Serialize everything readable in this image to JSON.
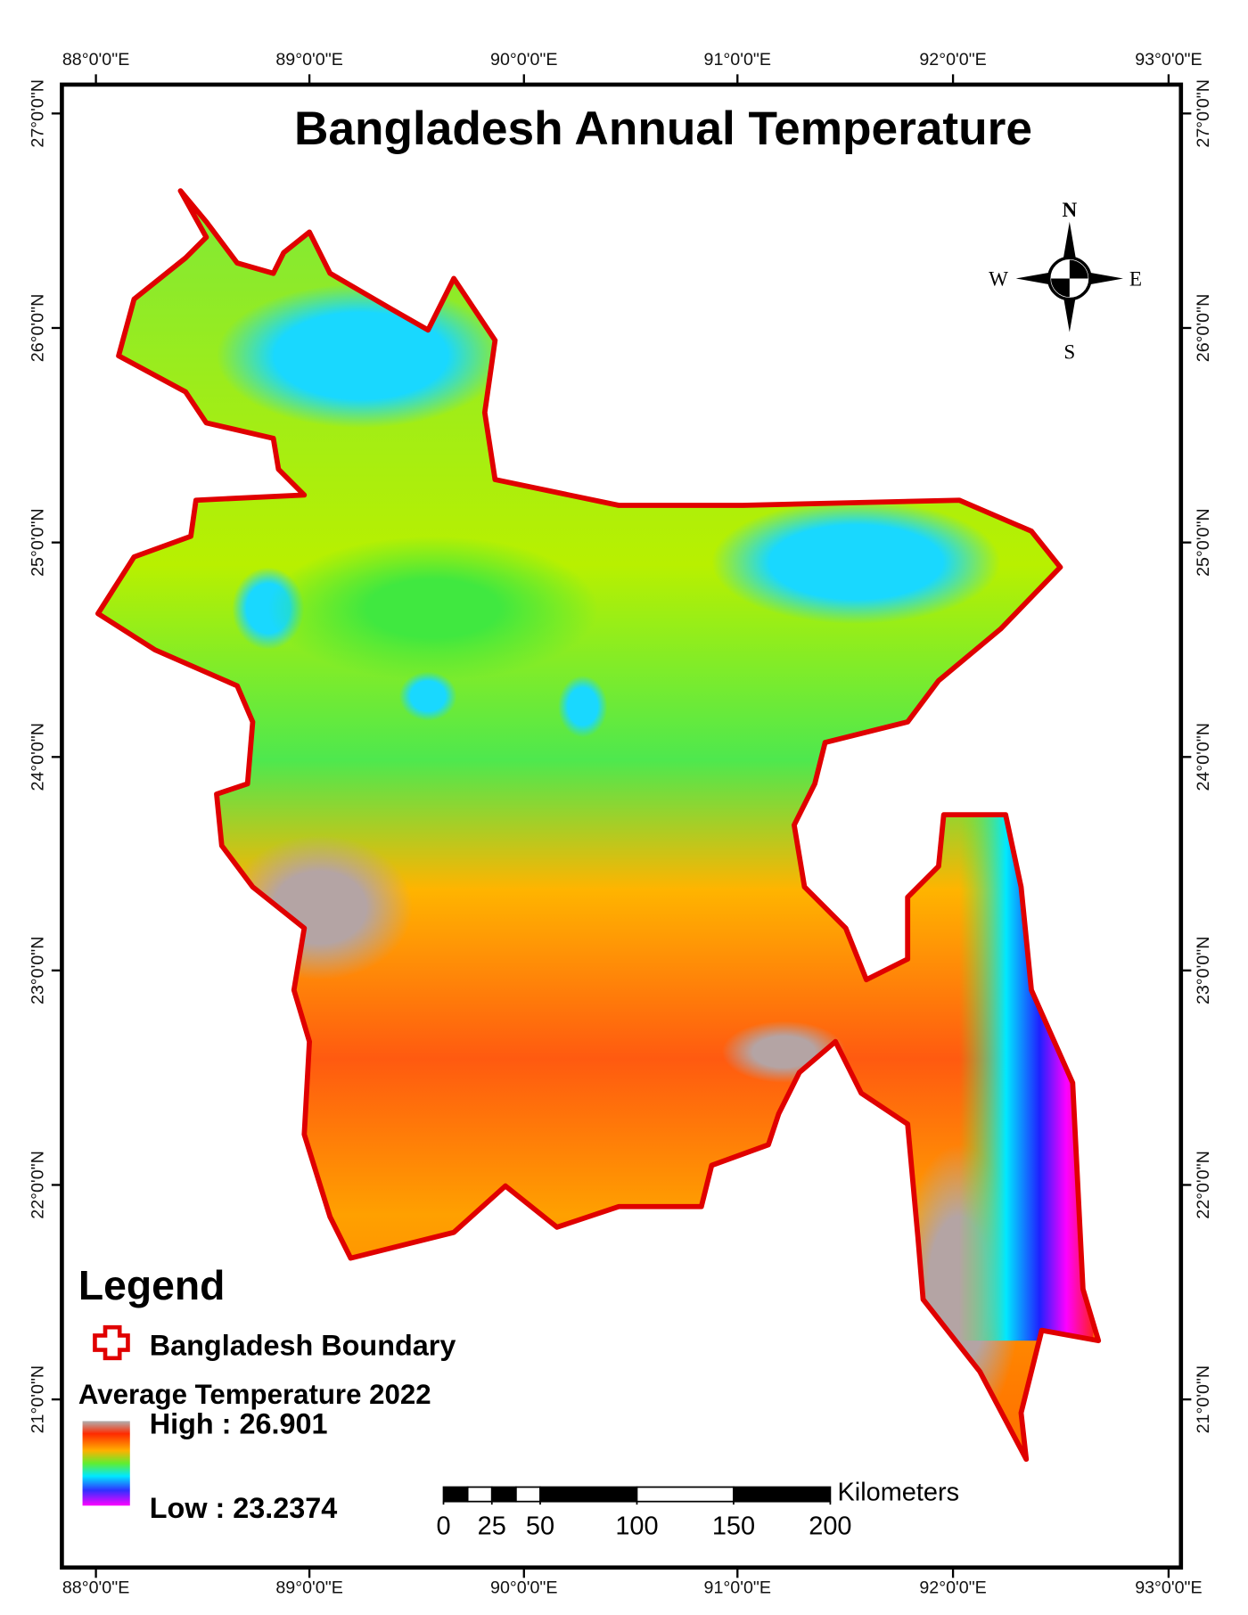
{
  "title": "Bangladesh Annual Temperature",
  "longitude_labels": [
    "88°0'0\"E",
    "89°0'0\"E",
    "90°0'0\"E",
    "91°0'0\"E",
    "92°0'0\"E",
    "93°0'0\"E"
  ],
  "latitude_labels": [
    "27°0'0\"N",
    "26°0'0\"N",
    "25°0'0\"N",
    "24°0'0\"N",
    "23°0'0\"N",
    "22°0'0\"N",
    "21°0'0\"N"
  ],
  "compass": {
    "north": "N",
    "south": "S",
    "east": "E",
    "west": "W"
  },
  "legend": {
    "title": "Legend",
    "boundary": "Bangladesh Boundary",
    "ramp_title": "Average Temperature 2022",
    "high": "High : 26.901",
    "low": "Low : 23.2374"
  },
  "scale_bar": {
    "ticks": [
      0,
      25,
      50,
      100,
      150,
      200
    ],
    "unit": "Kilometers"
  }
}
